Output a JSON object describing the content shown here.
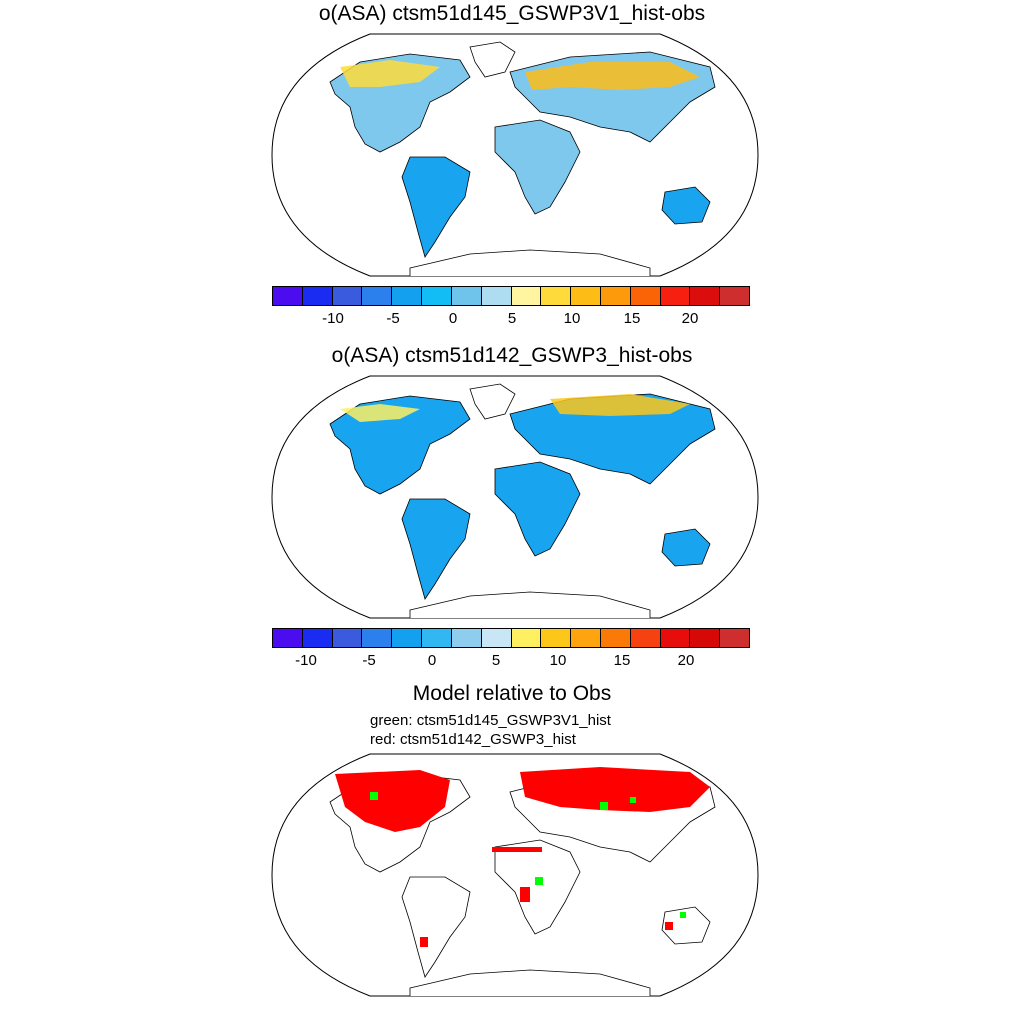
{
  "panel1": {
    "title": "o(ASA) ctsm51d145_GSWP3V1_hist-obs",
    "colorbar": [
      "#4b0df0",
      "#1a2cf2",
      "#3a5bde",
      "#2b80ee",
      "#13a0ee",
      "#12bcf5",
      "#6ec4ea",
      "#aedcf0",
      "#fff4a0",
      "#fedb3a",
      "#fdbd16",
      "#fd9a0b",
      "#fb6406",
      "#f61f10",
      "#db0d0d",
      "#cf2e2e"
    ],
    "ticks": [
      "-10",
      "-5",
      "0",
      "5",
      "10",
      "15",
      "20"
    ]
  },
  "panel2": {
    "title": "o(ASA) ctsm51d142_GSWP3_hist-obs",
    "colorbar": [
      "#4b0df0",
      "#1a2cf2",
      "#3a5bde",
      "#2b80ee",
      "#13a0ee",
      "#31b8f2",
      "#8fcdee",
      "#c9e6f6",
      "#fef061",
      "#fdc719",
      "#fda40f",
      "#fb7a07",
      "#f64210",
      "#e80d0d",
      "#d60808",
      "#cf2e2e"
    ],
    "ticks": [
      "-10",
      "-5",
      "0",
      "5",
      "10",
      "15",
      "20"
    ]
  },
  "panel3": {
    "title": "Model relative to Obs",
    "legend_green": "green: ctsm51d145_GSWP3V1_hist",
    "legend_red": "red: ctsm51d142_GSWP3_hist",
    "colors": {
      "green": "#00ff00",
      "red": "#ff0000"
    }
  },
  "colors": {
    "ocean": "#ffffff",
    "coast": "#000000",
    "panel1_land": "#7ec8ee",
    "panel2_land": "#19a4ef"
  }
}
